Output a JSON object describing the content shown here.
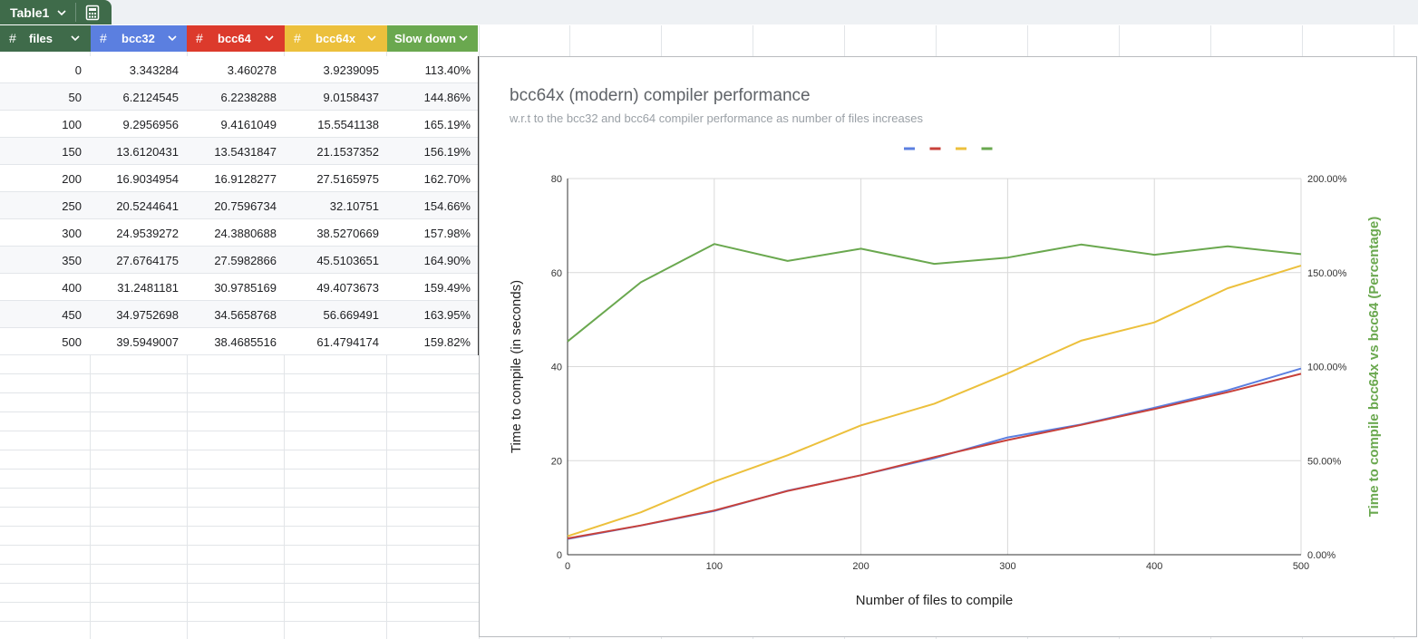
{
  "table_tab": {
    "name": "Table1",
    "calc_icon": "table-calculator-icon"
  },
  "columns": [
    {
      "label": "files",
      "color": "#3f6b4a"
    },
    {
      "label": "bcc32",
      "color": "#5b7fe0"
    },
    {
      "label": "bcc64",
      "color": "#dc3a2c"
    },
    {
      "label": "bcc64x",
      "color": "#ecc03c"
    },
    {
      "label": "Slow down",
      "color": "#6aa84f"
    }
  ],
  "rows": [
    [
      "0",
      "3.343284",
      "3.460278",
      "3.9239095",
      "113.40%"
    ],
    [
      "50",
      "6.2124545",
      "6.2238288",
      "9.0158437",
      "144.86%"
    ],
    [
      "100",
      "9.2956956",
      "9.4161049",
      "15.5541138",
      "165.19%"
    ],
    [
      "150",
      "13.6120431",
      "13.5431847",
      "21.1537352",
      "156.19%"
    ],
    [
      "200",
      "16.9034954",
      "16.9128277",
      "27.5165975",
      "162.70%"
    ],
    [
      "250",
      "20.5244641",
      "20.7596734",
      "32.10751",
      "154.66%"
    ],
    [
      "300",
      "24.9539272",
      "24.3880688",
      "38.5270669",
      "157.98%"
    ],
    [
      "350",
      "27.6764175",
      "27.5982866",
      "45.5103651",
      "164.90%"
    ],
    [
      "400",
      "31.2481181",
      "30.9785169",
      "49.4073673",
      "159.49%"
    ],
    [
      "450",
      "34.9752698",
      "34.5658768",
      "56.669491",
      "163.95%"
    ],
    [
      "500",
      "39.5949007",
      "38.4685516",
      "61.4794174",
      "159.82%"
    ]
  ],
  "chart": {
    "title": "bcc64x (modern) compiler performance",
    "subtitle": "w.r.t to the bcc32 and bcc64 compiler performance as number of files increases"
  },
  "chart_data": {
    "type": "line",
    "title": "bcc64x (modern) compiler performance",
    "subtitle": "w.r.t to the bcc32 and bcc64 compiler performance as number of files increases",
    "xlabel": "Number of files to compile",
    "ylabel": "Time to compile (in seconds)",
    "y2label": "Time to compile bcc64x vs bcc64 (Percentage)",
    "x": [
      0,
      50,
      100,
      150,
      200,
      250,
      300,
      350,
      400,
      450,
      500
    ],
    "xlim": [
      0,
      500
    ],
    "ylim": [
      0,
      80
    ],
    "y2lim": [
      0,
      2
    ],
    "x_ticks": [
      "0",
      "100",
      "200",
      "300",
      "400",
      "500"
    ],
    "y_ticks": [
      "0",
      "20",
      "40",
      "60",
      "80"
    ],
    "y2_ticks": [
      "0.00%",
      "50.00%",
      "100.00%",
      "150.00%",
      "200.00%"
    ],
    "grid": true,
    "legend_position": "top",
    "series": [
      {
        "color": "#5b7fe0",
        "axis": "left",
        "values": [
          3.343284,
          6.2124545,
          9.2956956,
          13.6120431,
          16.9034954,
          20.5244641,
          24.9539272,
          27.6764175,
          31.2481181,
          34.9752698,
          39.5949007
        ]
      },
      {
        "color": "#c8413a",
        "axis": "left",
        "values": [
          3.460278,
          6.2238288,
          9.4161049,
          13.5431847,
          16.9128277,
          20.7596734,
          24.3880688,
          27.5982866,
          30.9785169,
          34.5658768,
          38.4685516
        ]
      },
      {
        "color": "#ecc03c",
        "axis": "left",
        "values": [
          3.9239095,
          9.0158437,
          15.5541138,
          21.1537352,
          27.5165975,
          32.10751,
          38.5270669,
          45.5103651,
          49.4073673,
          56.669491,
          61.4794174
        ]
      },
      {
        "color": "#6aa84f",
        "axis": "right",
        "values": [
          1.134,
          1.4486,
          1.6519,
          1.5619,
          1.627,
          1.5466,
          1.5798,
          1.649,
          1.5949,
          1.6395,
          1.5982
        ]
      }
    ]
  }
}
